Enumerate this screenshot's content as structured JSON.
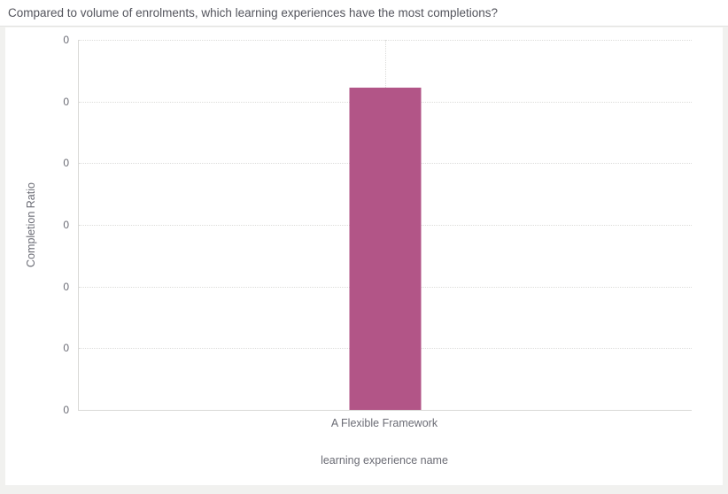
{
  "header": {
    "title": "Compared to volume of enrolments, which learning experiences have the most completions?"
  },
  "chart_data": {
    "type": "bar",
    "title": "Compared to volume of enrolments, which learning experiences have the most completions?",
    "categories": [
      "A Flexible Framework"
    ],
    "values": [
      0.87
    ],
    "xlabel": "learning experience name",
    "ylabel": "Completion Ratio",
    "ylim": [
      0,
      1
    ],
    "y_tick_labels": [
      "0",
      "0",
      "0",
      "0",
      "0",
      "0",
      "0"
    ],
    "bar_color": "#b25587",
    "grid": "dotted horizontal lines at each y tick, dotted vertical line at category center",
    "legend": "none"
  }
}
